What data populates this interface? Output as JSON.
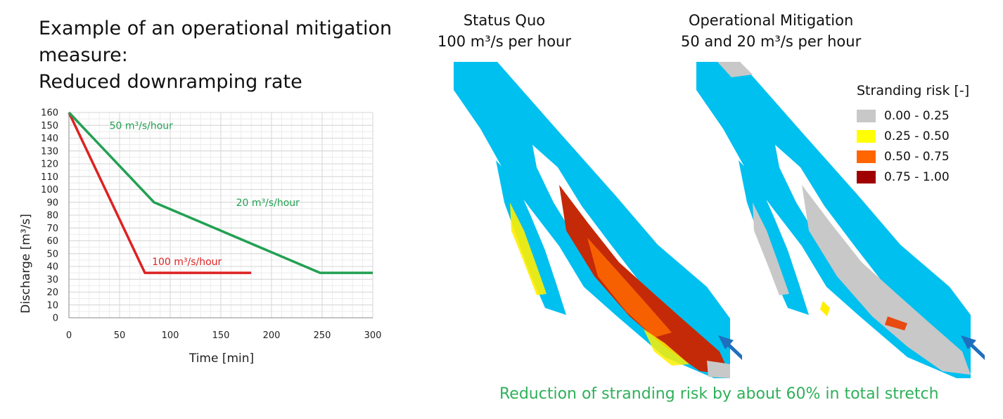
{
  "headline": {
    "line1": "Example of an operational mitigation",
    "line2": "measure:",
    "line3": "Reduced downramping rate"
  },
  "chart_data": {
    "type": "line",
    "xlabel": "Time [min]",
    "ylabel": "Discharge [m³/s]",
    "xlim": [
      0,
      300
    ],
    "ylim": [
      0,
      160
    ],
    "xticks": [
      0,
      50,
      100,
      150,
      200,
      250,
      300
    ],
    "yticks": [
      0,
      10,
      20,
      30,
      40,
      50,
      60,
      70,
      80,
      90,
      100,
      110,
      120,
      130,
      140,
      150,
      160
    ],
    "grid": true,
    "series": [
      {
        "color": "#dd2222",
        "x": [
          0,
          75,
          180
        ],
        "y": [
          160,
          35,
          35
        ]
      },
      {
        "color": "#22a052",
        "x": [
          0,
          84,
          248,
          300
        ],
        "y": [
          160,
          90,
          35,
          35
        ]
      }
    ],
    "annotations": [
      {
        "text": "50 m³/s/hour",
        "x": 40,
        "y": 147,
        "color": "#22a052"
      },
      {
        "text": "20 m³/s/hour",
        "x": 165,
        "y": 87,
        "color": "#22a052"
      },
      {
        "text": "100 m³/s/hour",
        "x": 82,
        "y": 41,
        "color": "#dd2222"
      }
    ]
  },
  "maps": {
    "status_quo": {
      "title1": "Status Quo",
      "title2": "100 m³/s per hour"
    },
    "mitigation": {
      "title1": "Operational Mitigation",
      "title2": "50 and 20 m³/s per hour"
    }
  },
  "legend": {
    "title": "Stranding risk [-]",
    "items": [
      {
        "label": "0.00 - 0.25",
        "color": "#c8c8c8"
      },
      {
        "label": "0.25 - 0.50",
        "color": "#ffff00"
      },
      {
        "label": "0.50 - 0.75",
        "color": "#ff6600"
      },
      {
        "label": "0.75 - 1.00",
        "color": "#a00000"
      }
    ]
  },
  "colors": {
    "water": "#00c0f0",
    "arrow": "#1f6fbf",
    "conclusion": "#2eb05a"
  },
  "conclusion": "Reduction of stranding risk by about 60% in total stretch"
}
